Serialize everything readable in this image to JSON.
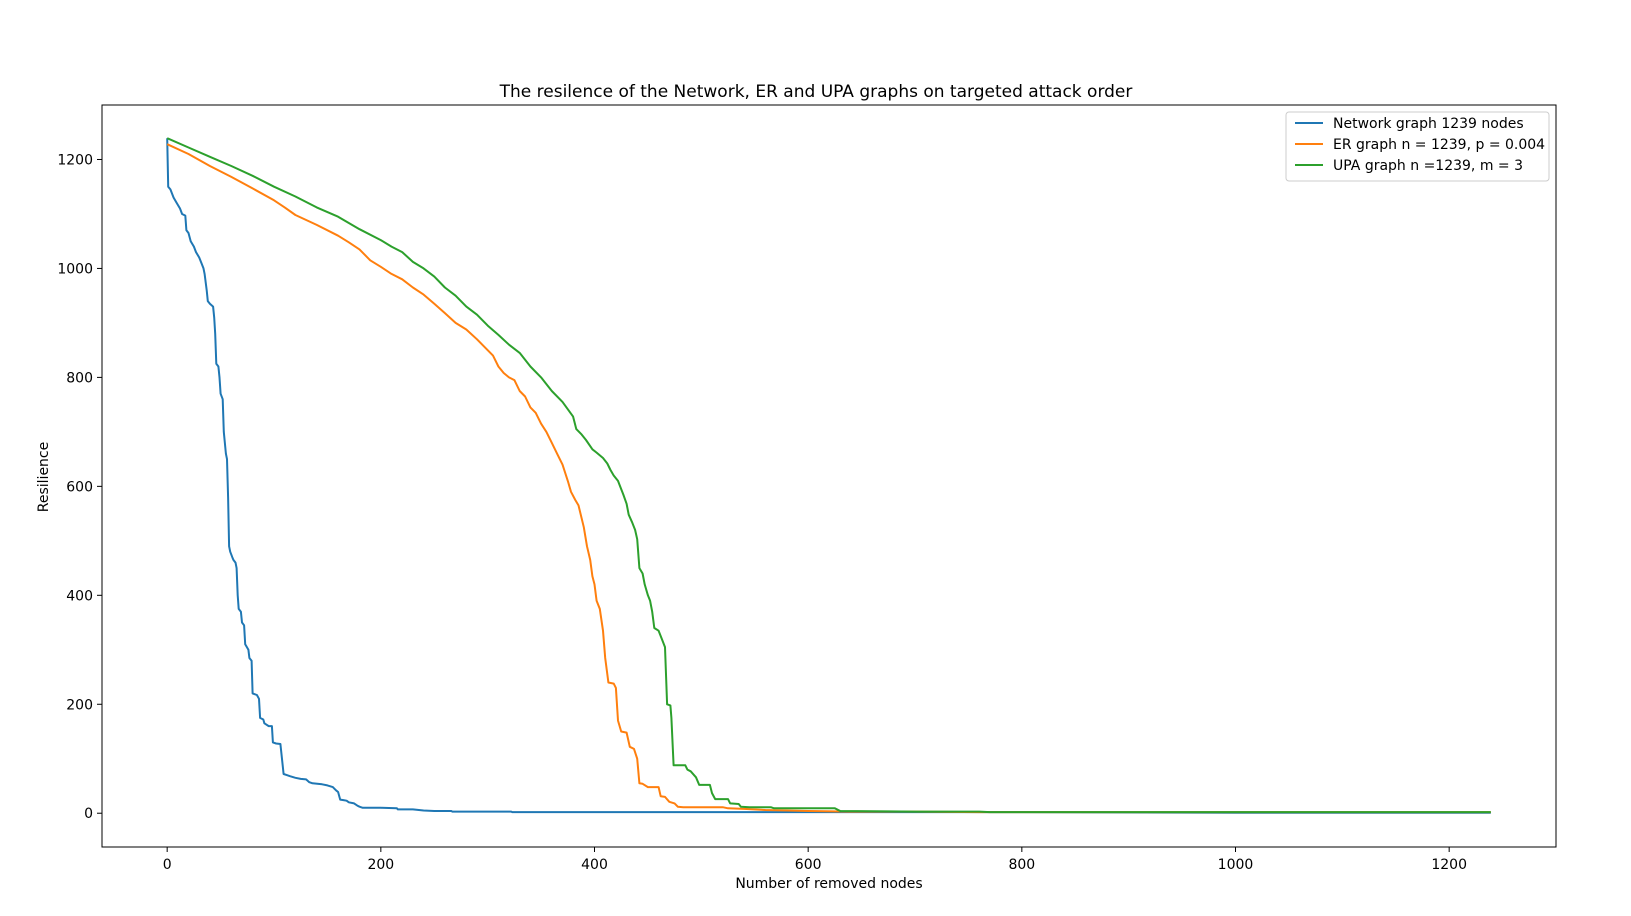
{
  "chart_data": {
    "type": "line",
    "title": "The resilence of the Network, ER and UPA graphs on targeted attack order",
    "xlabel": "Number of removed nodes",
    "ylabel": "Resilience",
    "xlim": [
      -61,
      1300
    ],
    "ylim": [
      -62,
      1300
    ],
    "xticks": [
      0,
      200,
      400,
      600,
      800,
      1000,
      1200
    ],
    "yticks": [
      0,
      200,
      400,
      600,
      800,
      1000,
      1200
    ],
    "legend_position": "top-right",
    "series": [
      {
        "name": "Network graph 1239 nodes",
        "color": "#1f77b4",
        "points": [
          [
            0,
            1239
          ],
          [
            1,
            1150
          ],
          [
            3,
            1145
          ],
          [
            6,
            1130
          ],
          [
            9,
            1120
          ],
          [
            12,
            1110
          ],
          [
            14,
            1100
          ],
          [
            17,
            1097
          ],
          [
            18,
            1070
          ],
          [
            20,
            1065
          ],
          [
            22,
            1050
          ],
          [
            25,
            1040
          ],
          [
            27,
            1030
          ],
          [
            30,
            1020
          ],
          [
            32,
            1010
          ],
          [
            34,
            1000
          ],
          [
            35,
            990
          ],
          [
            37,
            960
          ],
          [
            38,
            940
          ],
          [
            40,
            935
          ],
          [
            43,
            930
          ],
          [
            44,
            910
          ],
          [
            45,
            880
          ],
          [
            46,
            825
          ],
          [
            48,
            820
          ],
          [
            49,
            800
          ],
          [
            50,
            770
          ],
          [
            52,
            760
          ],
          [
            53,
            700
          ],
          [
            55,
            660
          ],
          [
            56,
            650
          ],
          [
            57,
            580
          ],
          [
            58,
            490
          ],
          [
            59,
            480
          ],
          [
            61,
            470
          ],
          [
            62,
            465
          ],
          [
            64,
            460
          ],
          [
            65,
            450
          ],
          [
            66,
            400
          ],
          [
            67,
            375
          ],
          [
            69,
            370
          ],
          [
            70,
            350
          ],
          [
            72,
            345
          ],
          [
            73,
            310
          ],
          [
            76,
            300
          ],
          [
            77,
            285
          ],
          [
            79,
            280
          ],
          [
            80,
            220
          ],
          [
            84,
            217
          ],
          [
            86,
            210
          ],
          [
            87,
            175
          ],
          [
            90,
            172
          ],
          [
            91,
            165
          ],
          [
            95,
            160
          ],
          [
            98,
            160
          ],
          [
            99,
            130
          ],
          [
            102,
            128
          ],
          [
            106,
            127
          ],
          [
            109,
            72
          ],
          [
            112,
            70
          ],
          [
            115,
            68
          ],
          [
            120,
            65
          ],
          [
            125,
            63
          ],
          [
            130,
            62
          ],
          [
            133,
            57
          ],
          [
            136,
            55
          ],
          [
            145,
            53
          ],
          [
            150,
            51
          ],
          [
            155,
            48
          ],
          [
            158,
            42
          ],
          [
            160,
            39
          ],
          [
            162,
            25
          ],
          [
            165,
            24
          ],
          [
            168,
            23
          ],
          [
            170,
            20
          ],
          [
            175,
            18
          ],
          [
            178,
            14
          ],
          [
            180,
            12
          ],
          [
            183,
            10
          ],
          [
            187,
            10
          ],
          [
            200,
            10
          ],
          [
            215,
            9
          ],
          [
            216,
            7
          ],
          [
            230,
            7
          ],
          [
            240,
            5
          ],
          [
            250,
            4
          ],
          [
            266,
            4
          ],
          [
            267,
            3
          ],
          [
            300,
            3
          ],
          [
            322,
            3
          ],
          [
            323,
            2
          ],
          [
            400,
            2
          ],
          [
            600,
            2
          ],
          [
            800,
            2
          ],
          [
            1000,
            1
          ],
          [
            1239,
            1
          ]
        ]
      },
      {
        "name": "ER graph n = 1239, p = 0.004",
        "color": "#ff7f0e",
        "points": [
          [
            0,
            1228
          ],
          [
            20,
            1210
          ],
          [
            40,
            1188
          ],
          [
            60,
            1168
          ],
          [
            80,
            1147
          ],
          [
            100,
            1125
          ],
          [
            110,
            1112
          ],
          [
            120,
            1098
          ],
          [
            140,
            1080
          ],
          [
            160,
            1060
          ],
          [
            170,
            1048
          ],
          [
            180,
            1035
          ],
          [
            190,
            1015
          ],
          [
            200,
            1003
          ],
          [
            210,
            990
          ],
          [
            220,
            980
          ],
          [
            230,
            965
          ],
          [
            240,
            952
          ],
          [
            250,
            935
          ],
          [
            260,
            918
          ],
          [
            270,
            900
          ],
          [
            280,
            888
          ],
          [
            290,
            870
          ],
          [
            300,
            850
          ],
          [
            305,
            840
          ],
          [
            310,
            820
          ],
          [
            315,
            808
          ],
          [
            320,
            800
          ],
          [
            325,
            795
          ],
          [
            330,
            775
          ],
          [
            335,
            765
          ],
          [
            340,
            745
          ],
          [
            345,
            735
          ],
          [
            350,
            715
          ],
          [
            355,
            700
          ],
          [
            360,
            680
          ],
          [
            365,
            660
          ],
          [
            370,
            640
          ],
          [
            375,
            610
          ],
          [
            378,
            590
          ],
          [
            382,
            575
          ],
          [
            385,
            565
          ],
          [
            390,
            525
          ],
          [
            393,
            490
          ],
          [
            396,
            465
          ],
          [
            398,
            435
          ],
          [
            400,
            420
          ],
          [
            402,
            390
          ],
          [
            405,
            375
          ],
          [
            408,
            335
          ],
          [
            410,
            285
          ],
          [
            413,
            240
          ],
          [
            418,
            238
          ],
          [
            420,
            230
          ],
          [
            422,
            170
          ],
          [
            425,
            150
          ],
          [
            430,
            148
          ],
          [
            433,
            122
          ],
          [
            437,
            118
          ],
          [
            440,
            100
          ],
          [
            442,
            55
          ],
          [
            445,
            54
          ],
          [
            450,
            48
          ],
          [
            460,
            48
          ],
          [
            462,
            31
          ],
          [
            466,
            30
          ],
          [
            470,
            21
          ],
          [
            475,
            18
          ],
          [
            478,
            12
          ],
          [
            483,
            11
          ],
          [
            500,
            11
          ],
          [
            520,
            11
          ],
          [
            525,
            9
          ],
          [
            540,
            8
          ],
          [
            560,
            6
          ],
          [
            600,
            4
          ],
          [
            640,
            3
          ],
          [
            700,
            3
          ],
          [
            760,
            2
          ],
          [
            900,
            2
          ],
          [
            1100,
            2
          ],
          [
            1239,
            2
          ]
        ]
      },
      {
        "name": "UPA graph n =1239, m = 3",
        "color": "#2ca02c",
        "points": [
          [
            0,
            1239
          ],
          [
            20,
            1222
          ],
          [
            40,
            1205
          ],
          [
            60,
            1188
          ],
          [
            80,
            1170
          ],
          [
            100,
            1150
          ],
          [
            120,
            1132
          ],
          [
            140,
            1112
          ],
          [
            160,
            1095
          ],
          [
            180,
            1072
          ],
          [
            200,
            1052
          ],
          [
            210,
            1040
          ],
          [
            220,
            1030
          ],
          [
            230,
            1012
          ],
          [
            240,
            1000
          ],
          [
            250,
            985
          ],
          [
            260,
            965
          ],
          [
            270,
            950
          ],
          [
            280,
            930
          ],
          [
            290,
            915
          ],
          [
            300,
            895
          ],
          [
            310,
            878
          ],
          [
            320,
            860
          ],
          [
            330,
            845
          ],
          [
            340,
            820
          ],
          [
            350,
            800
          ],
          [
            360,
            775
          ],
          [
            370,
            755
          ],
          [
            380,
            728
          ],
          [
            383,
            705
          ],
          [
            388,
            695
          ],
          [
            392,
            685
          ],
          [
            398,
            668
          ],
          [
            402,
            662
          ],
          [
            408,
            652
          ],
          [
            412,
            642
          ],
          [
            415,
            630
          ],
          [
            418,
            620
          ],
          [
            422,
            610
          ],
          [
            425,
            595
          ],
          [
            427,
            585
          ],
          [
            430,
            568
          ],
          [
            432,
            548
          ],
          [
            435,
            535
          ],
          [
            438,
            520
          ],
          [
            440,
            503
          ],
          [
            442,
            450
          ],
          [
            445,
            440
          ],
          [
            447,
            420
          ],
          [
            450,
            400
          ],
          [
            452,
            390
          ],
          [
            454,
            370
          ],
          [
            456,
            340
          ],
          [
            460,
            335
          ],
          [
            463,
            320
          ],
          [
            466,
            305
          ],
          [
            467,
            250
          ],
          [
            468,
            200
          ],
          [
            471,
            198
          ],
          [
            472,
            175
          ],
          [
            474,
            88
          ],
          [
            485,
            88
          ],
          [
            487,
            80
          ],
          [
            490,
            77
          ],
          [
            495,
            66
          ],
          [
            498,
            52
          ],
          [
            508,
            52
          ],
          [
            510,
            37
          ],
          [
            513,
            26
          ],
          [
            525,
            26
          ],
          [
            527,
            18
          ],
          [
            535,
            17
          ],
          [
            537,
            12
          ],
          [
            545,
            11
          ],
          [
            565,
            11
          ],
          [
            568,
            9
          ],
          [
            625,
            9
          ],
          [
            630,
            4
          ],
          [
            700,
            3
          ],
          [
            760,
            3
          ],
          [
            770,
            2
          ],
          [
            900,
            2
          ],
          [
            1239,
            2
          ]
        ]
      }
    ]
  }
}
